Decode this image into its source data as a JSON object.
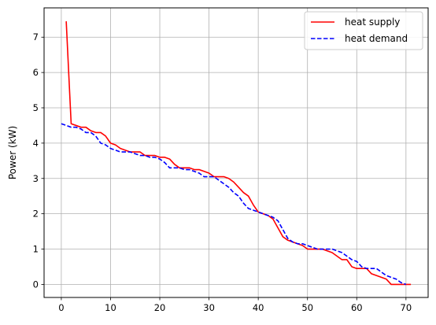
{
  "chart_data": {
    "type": "line",
    "title": "",
    "xlabel": "",
    "ylabel": "Power (kW)",
    "xlim": [
      -3.5,
      74.5
    ],
    "ylim": [
      -0.37,
      7.83
    ],
    "xticks": [
      0,
      10,
      20,
      30,
      40,
      50,
      60,
      70
    ],
    "yticks": [
      0,
      1,
      2,
      3,
      4,
      5,
      6,
      7
    ],
    "grid": true,
    "legend_position": "top-right",
    "series": [
      {
        "name": "heat supply",
        "color": "#ff0000",
        "style": "solid",
        "points": [
          [
            1,
            7.45
          ],
          [
            2,
            4.55
          ],
          [
            3,
            4.5
          ],
          [
            4,
            4.45
          ],
          [
            5,
            4.45
          ],
          [
            6,
            4.35
          ],
          [
            7,
            4.3
          ],
          [
            8,
            4.3
          ],
          [
            9,
            4.2
          ],
          [
            10,
            4.0
          ],
          [
            11,
            3.95
          ],
          [
            12,
            3.85
          ],
          [
            13,
            3.8
          ],
          [
            14,
            3.75
          ],
          [
            15,
            3.75
          ],
          [
            16,
            3.75
          ],
          [
            17,
            3.65
          ],
          [
            18,
            3.65
          ],
          [
            19,
            3.65
          ],
          [
            20,
            3.6
          ],
          [
            21,
            3.6
          ],
          [
            22,
            3.55
          ],
          [
            23,
            3.4
          ],
          [
            24,
            3.3
          ],
          [
            25,
            3.3
          ],
          [
            26,
            3.3
          ],
          [
            27,
            3.25
          ],
          [
            28,
            3.25
          ],
          [
            29,
            3.2
          ],
          [
            30,
            3.15
          ],
          [
            31,
            3.05
          ],
          [
            32,
            3.05
          ],
          [
            33,
            3.05
          ],
          [
            34,
            3.0
          ],
          [
            35,
            2.9
          ],
          [
            36,
            2.75
          ],
          [
            37,
            2.6
          ],
          [
            38,
            2.5
          ],
          [
            39,
            2.25
          ],
          [
            40,
            2.05
          ],
          [
            41,
            2.0
          ],
          [
            42,
            1.95
          ],
          [
            43,
            1.85
          ],
          [
            44,
            1.6
          ],
          [
            45,
            1.35
          ],
          [
            46,
            1.25
          ],
          [
            47,
            1.2
          ],
          [
            48,
            1.15
          ],
          [
            49,
            1.1
          ],
          [
            50,
            1.0
          ],
          [
            51,
            1.0
          ],
          [
            52,
            1.0
          ],
          [
            53,
            1.0
          ],
          [
            54,
            0.95
          ],
          [
            55,
            0.9
          ],
          [
            56,
            0.8
          ],
          [
            57,
            0.7
          ],
          [
            58,
            0.7
          ],
          [
            59,
            0.5
          ],
          [
            60,
            0.45
          ],
          [
            61,
            0.45
          ],
          [
            62,
            0.45
          ],
          [
            63,
            0.3
          ],
          [
            64,
            0.25
          ],
          [
            65,
            0.2
          ],
          [
            66,
            0.15
          ],
          [
            67,
            0.0
          ],
          [
            68,
            0.0
          ],
          [
            69,
            0.0
          ],
          [
            70,
            0.0
          ],
          [
            71,
            0.0
          ]
        ]
      },
      {
        "name": "heat demand",
        "color": "#0000ff",
        "style": "dashed",
        "points": [
          [
            0,
            4.55
          ],
          [
            1,
            4.5
          ],
          [
            2,
            4.45
          ],
          [
            3,
            4.45
          ],
          [
            4,
            4.4
          ],
          [
            5,
            4.3
          ],
          [
            6,
            4.3
          ],
          [
            7,
            4.2
          ],
          [
            8,
            4.0
          ],
          [
            9,
            3.95
          ],
          [
            10,
            3.85
          ],
          [
            11,
            3.8
          ],
          [
            12,
            3.75
          ],
          [
            13,
            3.75
          ],
          [
            14,
            3.75
          ],
          [
            15,
            3.7
          ],
          [
            16,
            3.65
          ],
          [
            17,
            3.65
          ],
          [
            18,
            3.6
          ],
          [
            19,
            3.6
          ],
          [
            20,
            3.55
          ],
          [
            21,
            3.45
          ],
          [
            22,
            3.3
          ],
          [
            23,
            3.3
          ],
          [
            24,
            3.3
          ],
          [
            25,
            3.25
          ],
          [
            26,
            3.25
          ],
          [
            27,
            3.2
          ],
          [
            28,
            3.15
          ],
          [
            29,
            3.05
          ],
          [
            30,
            3.05
          ],
          [
            31,
            3.05
          ],
          [
            32,
            2.95
          ],
          [
            33,
            2.85
          ],
          [
            34,
            2.75
          ],
          [
            35,
            2.6
          ],
          [
            36,
            2.5
          ],
          [
            37,
            2.3
          ],
          [
            38,
            2.15
          ],
          [
            39,
            2.1
          ],
          [
            40,
            2.05
          ],
          [
            41,
            2.0
          ],
          [
            42,
            1.95
          ],
          [
            43,
            1.9
          ],
          [
            44,
            1.8
          ],
          [
            45,
            1.55
          ],
          [
            46,
            1.3
          ],
          [
            47,
            1.2
          ],
          [
            48,
            1.15
          ],
          [
            49,
            1.15
          ],
          [
            50,
            1.1
          ],
          [
            51,
            1.05
          ],
          [
            52,
            1.0
          ],
          [
            53,
            1.0
          ],
          [
            54,
            1.0
          ],
          [
            55,
            1.0
          ],
          [
            56,
            0.95
          ],
          [
            57,
            0.9
          ],
          [
            58,
            0.8
          ],
          [
            59,
            0.7
          ],
          [
            60,
            0.65
          ],
          [
            61,
            0.5
          ],
          [
            62,
            0.45
          ],
          [
            63,
            0.45
          ],
          [
            64,
            0.45
          ],
          [
            65,
            0.35
          ],
          [
            66,
            0.25
          ],
          [
            67,
            0.2
          ],
          [
            68,
            0.15
          ],
          [
            69,
            0.05
          ],
          [
            70,
            0.0
          ]
        ]
      }
    ]
  }
}
